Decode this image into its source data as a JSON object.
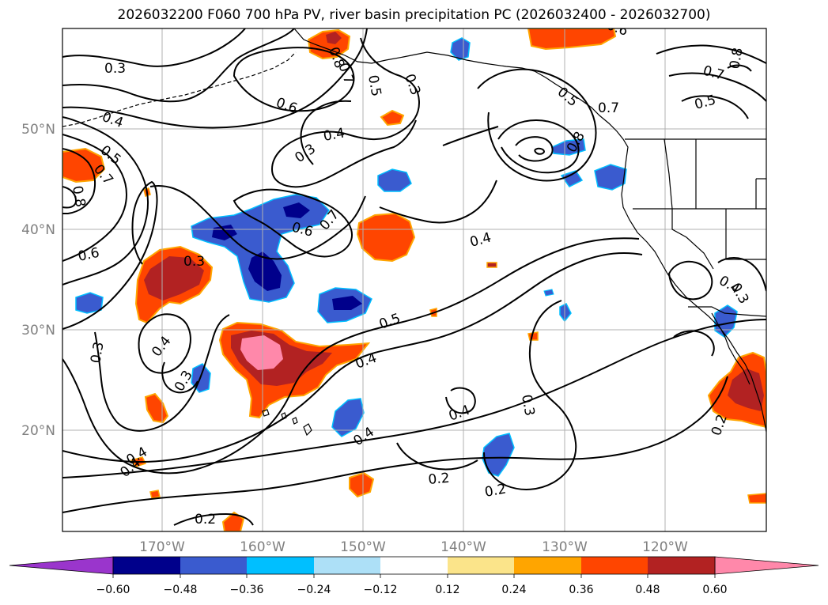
{
  "title": "2026032200 F060 700 hPa PV, river basin precipitation PC (2026032400 - 2026032700)",
  "map": {
    "lat_labels": [
      "50°N",
      "40°N",
      "30°N",
      "20°N"
    ],
    "lon_labels": [
      "170°W",
      "160°W",
      "150°W",
      "140°W",
      "130°W",
      "120°W"
    ],
    "contour_labels": [
      "0.3",
      "0.4",
      "0.5",
      "0.7",
      "0.8",
      "0.6",
      "0.3",
      "0.4",
      "0.3",
      "0.6",
      "0.7",
      "0.5",
      "0.3",
      "0.6",
      "0.7",
      "0.8",
      "0.7",
      "0.5",
      "0.8",
      "0.7",
      "0.5",
      "0.8",
      "0.6",
      "0.3",
      "0.4",
      "0.5",
      "0.3",
      "0.4",
      "0.3",
      "0.4",
      "0.4",
      "0.3",
      "0.4",
      "0.4",
      "0.2",
      "0.2",
      "0.2",
      "0.4",
      "0.4",
      "0.2"
    ]
  },
  "colorbar": {
    "ticks": [
      "−0.60",
      "−0.48",
      "−0.36",
      "−0.24",
      "−0.12",
      "0.12",
      "0.24",
      "0.36",
      "0.48",
      "0.60"
    ],
    "colors": {
      "under": "#9a35cc",
      "bins": [
        "#00008b",
        "#3a5bcf",
        "#00bfff",
        "#ade0f7",
        "#ffffff",
        "#fbe48a",
        "#ffa500",
        "#ff4500",
        "#b22222",
        "#ff88aa"
      ]
    }
  }
}
